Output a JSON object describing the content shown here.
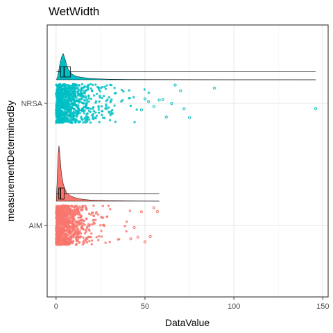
{
  "chart_data": {
    "type": "raincloud",
    "title": "WetWidth",
    "xlabel": "DataValue",
    "ylabel": "measurementDeterminedBy",
    "xlim": [
      -5,
      153
    ],
    "x_ticks": [
      0,
      50,
      100,
      150
    ],
    "x_tick_labels": [
      "0",
      "50",
      "100",
      "150"
    ],
    "categories": [
      "NRSA",
      "AIM"
    ],
    "grid": true,
    "colors": {
      "NRSA": "#00BFC4",
      "AIM": "#F8766D"
    },
    "series": [
      {
        "name": "NRSA",
        "boxplot": {
          "q1": 2.5,
          "median": 4.5,
          "q3": 8,
          "whisker_low": 0.3,
          "whisker_high": 146
        },
        "density": [
          [
            0.3,
            0.02
          ],
          [
            1,
            0.15
          ],
          [
            2,
            0.55
          ],
          [
            3,
            0.85
          ],
          [
            4,
            1.0
          ],
          [
            5,
            0.8
          ],
          [
            6,
            0.55
          ],
          [
            7,
            0.38
          ],
          [
            8,
            0.3
          ],
          [
            9,
            0.22
          ],
          [
            10,
            0.17
          ],
          [
            12,
            0.12
          ],
          [
            15,
            0.09
          ],
          [
            18,
            0.06
          ],
          [
            22,
            0.04
          ],
          [
            26,
            0.03
          ],
          [
            30,
            0.02
          ],
          [
            40,
            0.012
          ],
          [
            50,
            0.01
          ],
          [
            60,
            0.008
          ],
          [
            70,
            0.006
          ],
          [
            80,
            0.003
          ],
          [
            100,
            0.001
          ],
          [
            146,
            0.0005
          ]
        ],
        "point_max": 75,
        "outliers": [
          146,
          89,
          75,
          72,
          70,
          67,
          65,
          62,
          60,
          58,
          55,
          52,
          50,
          48
        ]
      },
      {
        "name": "AIM",
        "boxplot": {
          "q1": 1.5,
          "median": 2.5,
          "q3": 4.5,
          "whisker_low": 0.2,
          "whisker_high": 58
        },
        "density": [
          [
            0.2,
            0.05
          ],
          [
            0.8,
            0.55
          ],
          [
            1.2,
            0.85
          ],
          [
            1.6,
            1.0
          ],
          [
            2,
            0.9
          ],
          [
            2.5,
            0.7
          ],
          [
            3,
            0.5
          ],
          [
            4,
            0.32
          ],
          [
            5,
            0.22
          ],
          [
            6,
            0.15
          ],
          [
            8,
            0.1
          ],
          [
            10,
            0.07
          ],
          [
            13,
            0.045
          ],
          [
            16,
            0.03
          ],
          [
            20,
            0.02
          ],
          [
            25,
            0.014
          ],
          [
            30,
            0.01
          ],
          [
            40,
            0.006
          ],
          [
            50,
            0.003
          ],
          [
            58,
            0.001
          ]
        ],
        "point_max": 56,
        "outliers": [
          57,
          55,
          53,
          50,
          48,
          46,
          44,
          42
        ]
      }
    ]
  }
}
